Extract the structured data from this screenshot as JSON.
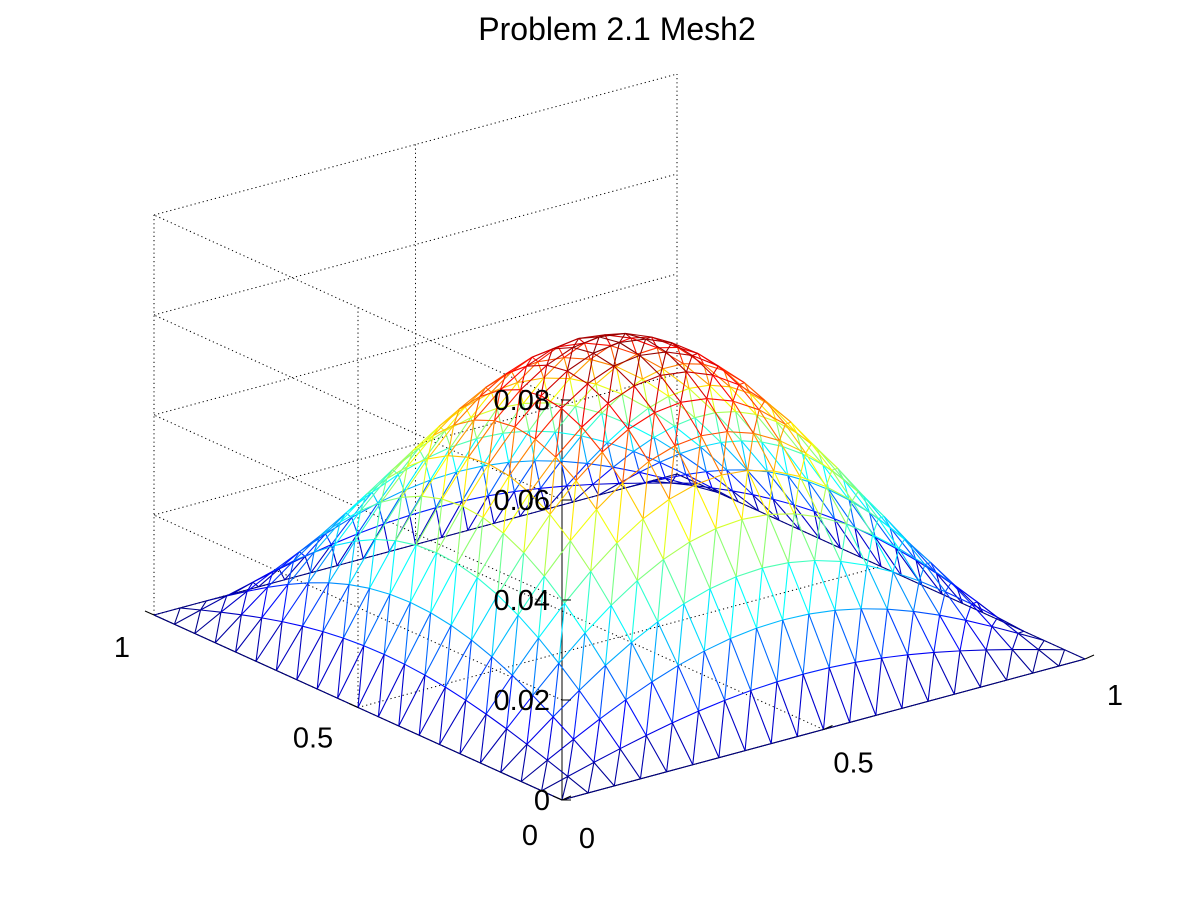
{
  "chart_data": {
    "type": "mesh",
    "title": "Problem 2.1 Mesh2",
    "xlabel": "",
    "ylabel": "",
    "zlabel": "",
    "xlim": [
      0,
      1
    ],
    "ylim": [
      0,
      1
    ],
    "zlim": [
      0,
      0.08
    ],
    "x_ticks": [
      0,
      0.5,
      1
    ],
    "y_ticks": [
      0,
      0.5,
      1
    ],
    "z_ticks": [
      0,
      0.02,
      0.04,
      0.06,
      0.08
    ],
    "x_tick_labels": [
      "0",
      "0.5",
      "1"
    ],
    "y_tick_labels": [
      "0",
      "0.5",
      "1"
    ],
    "z_tick_labels": [
      "0",
      "0.02",
      "0.04",
      "0.06",
      "0.08"
    ],
    "grid": true,
    "colormap": "jet",
    "surface": {
      "description_function": "z = 0.0589 * sin(pi*x) * sin(pi*y)",
      "peak_value": 0.0589,
      "grid_divisions": 20,
      "triangulated": true
    }
  },
  "colors": {
    "background": "#ffffff",
    "axis": "#000000",
    "grid": "#000000"
  }
}
